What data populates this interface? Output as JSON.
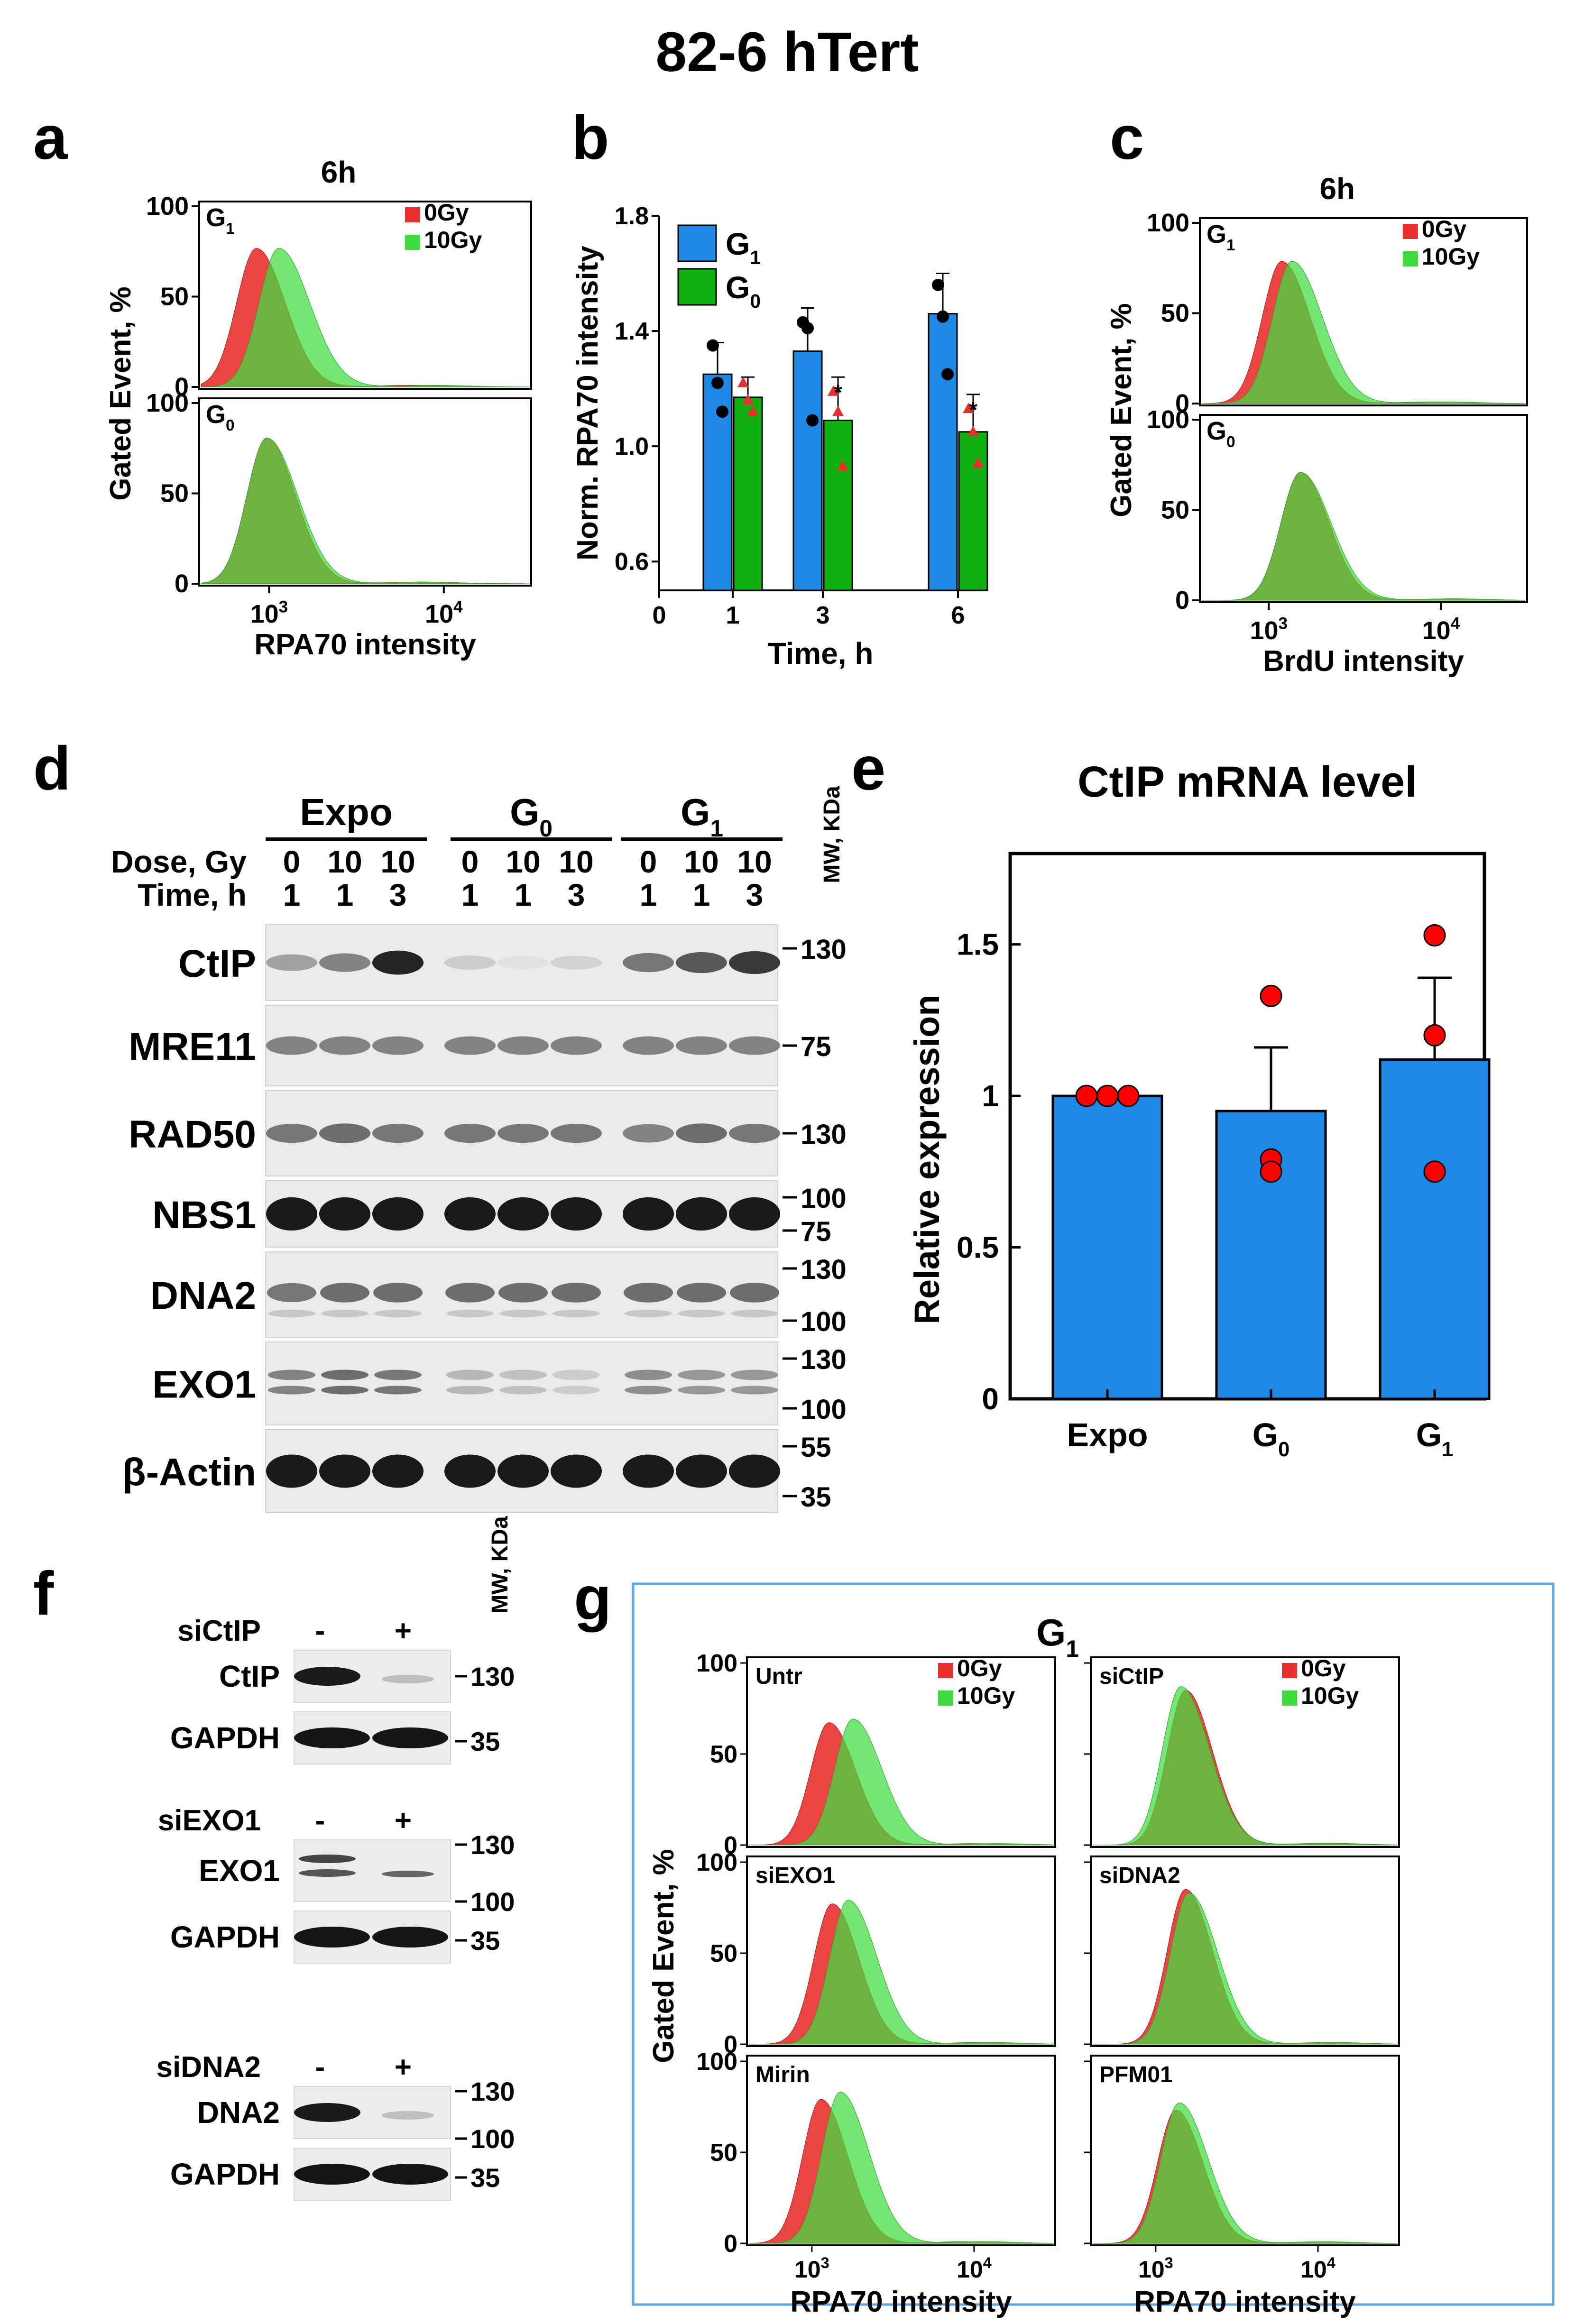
{
  "figure_title": "82-6 hTert",
  "colors": {
    "red": "#e8312e",
    "green": "#3fdc3f",
    "overlap": "#5a8c22",
    "blue": "#1e88e5",
    "dark_green": "#10b010",
    "frame_blue": "#5aa9e6"
  },
  "panel_a": {
    "letter": "a",
    "time_title": "6h",
    "ylabel": "Gated Event, %",
    "xlabel": "RPA70 intensity",
    "yticks": [
      "100",
      "50",
      "0"
    ],
    "xticks": [
      {
        "base": "10",
        "exp": "3"
      },
      {
        "base": "10",
        "exp": "4"
      }
    ],
    "legend": [
      "0Gy",
      "10Gy"
    ],
    "subpanels": [
      {
        "label": "G",
        "sub": "1",
        "red_peak_log": 2.92,
        "green_peak_log": 3.05,
        "red_height": 0.78,
        "green_height": 0.78
      },
      {
        "label": "G",
        "sub": "0",
        "red_peak_log": 2.98,
        "green_peak_log": 2.98,
        "red_height": 0.82,
        "green_height": 0.82
      }
    ]
  },
  "panel_b": {
    "letter": "b",
    "ylabel": "Norm. RPA70 intensity",
    "xlabel": "Time, h",
    "yticks": [
      "0.6",
      "1.0",
      "1.4",
      "1.8"
    ],
    "xticks": [
      "0",
      "1",
      "3",
      "6"
    ],
    "legend": [
      {
        "label": "G",
        "sub": "1"
      },
      {
        "label": "G",
        "sub": "0"
      }
    ],
    "significance": "*"
  },
  "panel_c": {
    "letter": "c",
    "time_title": "6h",
    "ylabel": "Gated Event, %",
    "xlabel": "BrdU intensity",
    "yticks": [
      "100",
      "50",
      "0"
    ],
    "xticks": [
      {
        "base": "10",
        "exp": "3"
      },
      {
        "base": "10",
        "exp": "4"
      }
    ],
    "legend": [
      "0Gy",
      "10Gy"
    ],
    "subpanels": [
      {
        "label": "G",
        "sub": "1",
        "red_peak_log": 3.07,
        "green_peak_log": 3.13,
        "red_height": 0.8,
        "green_height": 0.8
      },
      {
        "label": "G",
        "sub": "0",
        "red_peak_log": 3.18,
        "green_peak_log": 3.18,
        "red_height": 0.72,
        "green_height": 0.72
      }
    ]
  },
  "panel_d": {
    "letter": "d",
    "groups": [
      {
        "label": "Expo",
        "sub": ""
      },
      {
        "label": "G",
        "sub": "0"
      },
      {
        "label": "G",
        "sub": "1"
      }
    ],
    "dose_label": "Dose, Gy",
    "time_label": "Time, h",
    "doses": [
      "0",
      "10",
      "10",
      "0",
      "10",
      "10",
      "0",
      "10",
      "10"
    ],
    "times": [
      "1",
      "1",
      "3",
      "1",
      "1",
      "3",
      "1",
      "1",
      "3"
    ],
    "mw_label": "MW, KDa",
    "blots": [
      {
        "name": "CtIP",
        "markers": [
          "130"
        ],
        "intensity": [
          0.35,
          0.5,
          0.95,
          0.15,
          0.05,
          0.12,
          0.55,
          0.7,
          0.85
        ]
      },
      {
        "name": "MRE11",
        "markers": [
          "75"
        ],
        "intensity": [
          0.5,
          0.5,
          0.5,
          0.5,
          0.5,
          0.5,
          0.5,
          0.5,
          0.5
        ]
      },
      {
        "name": "RAD50",
        "markers": [
          "130"
        ],
        "intensity": [
          0.55,
          0.6,
          0.55,
          0.55,
          0.55,
          0.55,
          0.5,
          0.6,
          0.55
        ]
      },
      {
        "name": "NBS1",
        "markers": [
          "100",
          "75"
        ],
        "intensity": [
          1,
          1,
          1,
          1,
          1,
          1,
          1,
          1,
          1
        ]
      },
      {
        "name": "DNA2",
        "markers": [
          "130",
          "100"
        ],
        "intensity": [
          0.55,
          0.6,
          0.6,
          0.6,
          0.6,
          0.6,
          0.6,
          0.6,
          0.6
        ]
      },
      {
        "name": "EXO1",
        "markers": [
          "130",
          "100"
        ],
        "intensity": [
          0.5,
          0.6,
          0.55,
          0.25,
          0.2,
          0.15,
          0.45,
          0.4,
          0.4
        ]
      },
      {
        "name": "β-Actin",
        "markers": [
          "55",
          "35"
        ],
        "intensity": [
          1,
          1,
          1,
          1,
          1,
          1,
          1,
          1,
          1
        ]
      }
    ]
  },
  "panel_e": {
    "letter": "e",
    "title": "CtIP mRNA level",
    "ylabel": "Relative expression",
    "yticks": [
      "0",
      "0.5",
      "1",
      "1.5"
    ],
    "categories": [
      {
        "label": "Expo",
        "sub": ""
      },
      {
        "label": "G",
        "sub": "0"
      },
      {
        "label": "G",
        "sub": "1"
      }
    ]
  },
  "panel_f": {
    "letter": "f",
    "mw_label": "MW, KDa",
    "groups": [
      {
        "treatment": "siCtIP",
        "signs": [
          "-",
          "+"
        ],
        "protein": "CtIP",
        "protein_markers": [
          "130"
        ],
        "loading": "GAPDH",
        "loading_marker": "35"
      },
      {
        "treatment": "siEXO1",
        "signs": [
          "-",
          "+"
        ],
        "protein": "EXO1",
        "protein_markers": [
          "130",
          "100"
        ],
        "loading": "GAPDH",
        "loading_marker": "35"
      },
      {
        "treatment": "siDNA2",
        "signs": [
          "-",
          "+"
        ],
        "protein": "DNA2",
        "protein_markers": [
          "130",
          "100"
        ],
        "loading": "GAPDH",
        "loading_marker": "35"
      }
    ]
  },
  "panel_g": {
    "letter": "g",
    "title": {
      "label": "G",
      "sub": "1"
    },
    "ylabel": "Gated Event, %",
    "xlabels": [
      "RPA70 intensity",
      "RPA70 intensity"
    ],
    "yticks": [
      "100",
      "50",
      "0"
    ],
    "xticks": [
      {
        "base": "10",
        "exp": "3"
      },
      {
        "base": "10",
        "exp": "4"
      }
    ],
    "legend": [
      "0Gy",
      "10Gy"
    ],
    "plots": [
      {
        "label": "Untr",
        "red_peak_log": 3.1,
        "green_peak_log": 3.25,
        "red_height": 0.68,
        "green_height": 0.7
      },
      {
        "label": "siCtIP",
        "red_peak_log": 3.18,
        "green_peak_log": 3.15,
        "red_height": 0.86,
        "green_height": 0.88
      },
      {
        "label": "siEXO1",
        "red_peak_log": 3.12,
        "green_peak_log": 3.22,
        "red_height": 0.78,
        "green_height": 0.8
      },
      {
        "label": "siDNA2",
        "red_peak_log": 3.18,
        "green_peak_log": 3.2,
        "red_height": 0.86,
        "green_height": 0.84
      },
      {
        "label": "Mirin",
        "red_peak_log": 3.05,
        "green_peak_log": 3.17,
        "red_height": 0.8,
        "green_height": 0.84
      },
      {
        "label": "PFM01",
        "red_peak_log": 3.12,
        "green_peak_log": 3.14,
        "red_height": 0.74,
        "green_height": 0.78
      }
    ]
  },
  "chart_data": [
    {
      "type": "bar",
      "title": "Norm. RPA70 intensity (panel b)",
      "xlabel": "Time, h",
      "ylabel": "Norm. RPA70 intensity",
      "categories": [
        "1",
        "3",
        "6"
      ],
      "ylim": [
        0.5,
        1.8
      ],
      "series": [
        {
          "name": "G1",
          "values": [
            1.25,
            1.33,
            1.46
          ],
          "errors": [
            0.11,
            0.15,
            0.14
          ],
          "points": [
            [
              1.35,
              1.22,
              1.12
            ],
            [
              1.43,
              1.41,
              1.09
            ],
            [
              1.56,
              1.45,
              1.25
            ]
          ]
        },
        {
          "name": "G0",
          "values": [
            1.17,
            1.09,
            1.05
          ],
          "errors": [
            0.07,
            0.15,
            0.13
          ],
          "points": [
            [
              1.22,
              1.16,
              1.12
            ],
            [
              1.19,
              1.12,
              0.93
            ],
            [
              1.13,
              1.05,
              0.94
            ]
          ]
        }
      ]
    },
    {
      "type": "bar",
      "title": "CtIP mRNA level",
      "xlabel": "",
      "ylabel": "Relative expression",
      "categories": [
        "Expo",
        "G0",
        "G1"
      ],
      "ylim": [
        0,
        1.8
      ],
      "values": [
        1.0,
        0.95,
        1.12
      ],
      "errors": [
        0.0,
        0.21,
        0.27
      ],
      "points": [
        [
          1.0,
          1.0,
          1.0
        ],
        [
          1.33,
          0.79,
          0.75
        ],
        [
          1.53,
          1.2,
          0.75
        ]
      ]
    }
  ]
}
